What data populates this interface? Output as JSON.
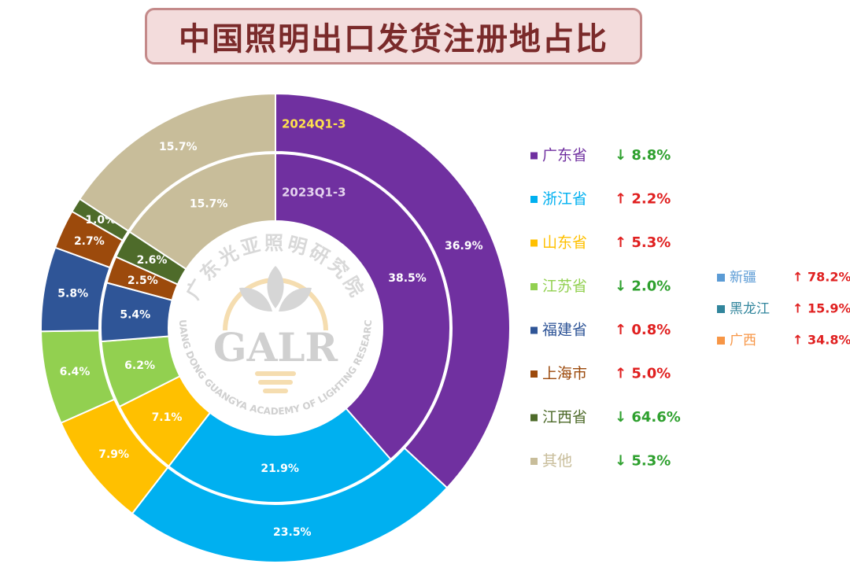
{
  "title": "中国照明出口发货注册地占比",
  "chart_data": {
    "type": "pie",
    "series": [
      {
        "name": "2024Q1-3",
        "values": [
          36.9,
          23.5,
          7.9,
          6.4,
          5.8,
          2.7,
          1.0,
          15.7
        ],
        "labels": [
          "36.9%",
          "23.5%",
          "7.9%",
          "6.4%",
          "5.8%",
          "2.7%",
          "1.0%",
          "15.7%"
        ]
      },
      {
        "name": "2023Q1-3",
        "values": [
          38.5,
          21.9,
          7.1,
          6.2,
          5.4,
          2.5,
          2.6,
          15.7
        ],
        "labels": [
          "38.5%",
          "21.9%",
          "7.1%",
          "6.2%",
          "5.4%",
          "2.5%",
          "2.6%",
          "15.7%"
        ]
      }
    ],
    "categories": [
      "广东省",
      "浙江省",
      "山东省",
      "江苏省",
      "福建省",
      "上海市",
      "江西省",
      "其他"
    ],
    "colors": [
      "#7030a0",
      "#00b0f0",
      "#ffc000",
      "#92d050",
      "#2f5597",
      "#9c4a0c",
      "#4e6b2a",
      "#c8bd9a"
    ]
  },
  "legend": [
    {
      "name": "广东省",
      "arrow": "↓",
      "change": "8.8%",
      "color": "#7030a0",
      "change_color": "#2ea02e"
    },
    {
      "name": "浙江省",
      "arrow": "↑",
      "change": "2.2%",
      "color": "#00b0f0",
      "change_color": "#e02020"
    },
    {
      "name": "山东省",
      "arrow": "↑",
      "change": "5.3%",
      "color": "#ffc000",
      "change_color": "#e02020"
    },
    {
      "name": "江苏省",
      "arrow": "↓",
      "change": "2.0%",
      "color": "#92d050",
      "change_color": "#2ea02e"
    },
    {
      "name": "福建省",
      "arrow": "↑",
      "change": "0.8%",
      "color": "#2f5597",
      "change_color": "#e02020"
    },
    {
      "name": "上海市",
      "arrow": "↑",
      "change": "5.0%",
      "color": "#9c4a0c",
      "change_color": "#e02020"
    },
    {
      "name": "江西省",
      "arrow": "↓",
      "change": "64.6%",
      "color": "#4e6b2a",
      "change_color": "#2ea02e"
    },
    {
      "name": "其他",
      "arrow": "↓",
      "change": "5.3%",
      "color": "#c8bd9a",
      "change_color": "#2ea02e"
    }
  ],
  "legend2": [
    {
      "name": "新疆",
      "arrow": "↑",
      "change": "78.2%",
      "color": "#5b9bd5",
      "change_color": "#e02020"
    },
    {
      "name": "黑龙江",
      "arrow": "↑",
      "change": "15.9%",
      "color": "#31859c",
      "change_color": "#e02020"
    },
    {
      "name": "广西",
      "arrow": "↑",
      "change": "34.8%",
      "color": "#f79646",
      "change_color": "#e02020"
    }
  ],
  "watermark": {
    "arc_top": "广东光亚照明研究院",
    "logo": "GALR",
    "arc_bottom": "GUANG DONG GUANGYA ACADEMY OF LIGHTING RESEARCH"
  }
}
